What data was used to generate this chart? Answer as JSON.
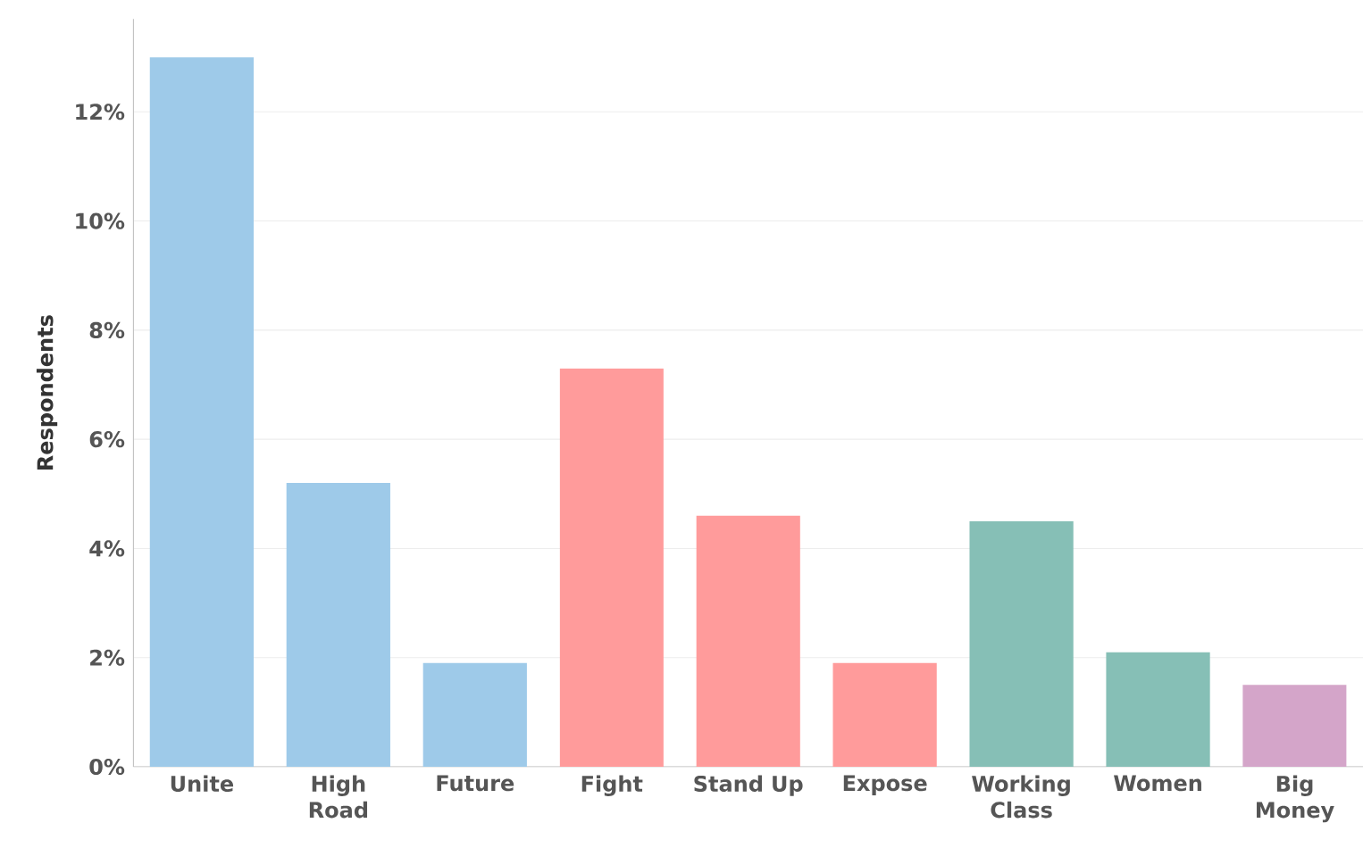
{
  "chart_data": {
    "type": "bar",
    "ylabel": "Respondents",
    "categories": [
      "Unite",
      "High Road",
      "Future",
      "Fight",
      "Stand Up",
      "Expose",
      "Working Class",
      "Women",
      "Big Money"
    ],
    "values": [
      13.0,
      5.2,
      1.9,
      7.3,
      4.6,
      1.9,
      4.5,
      2.1,
      1.5
    ],
    "colors": [
      "#9ecae9",
      "#9ecae9",
      "#9ecae9",
      "#ff9b9b",
      "#ff9b9b",
      "#ff9b9b",
      "#86bfb6",
      "#86bfb6",
      "#d4a5c9"
    ],
    "ylim": [
      0,
      13.7
    ],
    "yticks": [
      {
        "value": 0,
        "label": "0%"
      },
      {
        "value": 2,
        "label": "2%"
      },
      {
        "value": 4,
        "label": "4%"
      },
      {
        "value": 6,
        "label": "6%"
      },
      {
        "value": 8,
        "label": "8%"
      },
      {
        "value": 10,
        "label": "10%"
      },
      {
        "value": 12,
        "label": "12%"
      }
    ],
    "grid": "y"
  }
}
